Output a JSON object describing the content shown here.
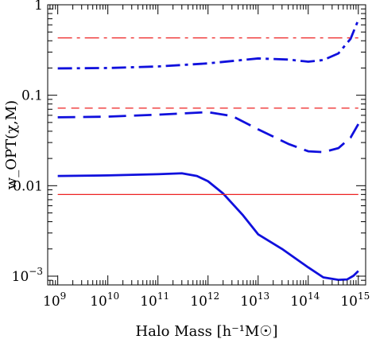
{
  "chart_data": {
    "type": "line",
    "xlabel": "Halo Mass [h⁻¹M☉]",
    "ylabel": "w_OPT(χ,M)",
    "xscale": "log",
    "yscale": "log",
    "xlim": [
      630000000.0,
      1400000000000000.0
    ],
    "ylim": [
      0.0008,
      1.0
    ],
    "x_ticks": [
      {
        "exp": "9"
      },
      {
        "exp": "10"
      },
      {
        "exp": "11"
      },
      {
        "exp": "12"
      },
      {
        "exp": "13"
      },
      {
        "exp": "14"
      },
      {
        "exp": "15"
      }
    ],
    "y_ticks": [
      {
        "value": 0.001,
        "label": "10",
        "exp": "−3"
      },
      {
        "value": 0.01,
        "label": "0.01",
        "exp": ""
      },
      {
        "value": 0.1,
        "label": "0.1",
        "exp": ""
      },
      {
        "value": 1,
        "label": "1",
        "exp": ""
      }
    ],
    "grid": false,
    "legend": "none",
    "series": [
      {
        "color": "#1010dd",
        "dash": "solid",
        "points": [
          [
            1000000000.0,
            0.0128
          ],
          [
            10000000000.0,
            0.013
          ],
          [
            100000000000.0,
            0.0134
          ],
          [
            300000000000.0,
            0.0137
          ],
          [
            600000000000.0,
            0.0128
          ],
          [
            1000000000000.0,
            0.0112
          ],
          [
            2000000000000.0,
            0.0082
          ],
          [
            5000000000000.0,
            0.0047
          ],
          [
            10000000000000.0,
            0.0029
          ],
          [
            30000000000000.0,
            0.002
          ],
          [
            100000000000000.0,
            0.00125
          ],
          [
            200000000000000.0,
            0.00097
          ],
          [
            400000000000000.0,
            0.00091
          ],
          [
            600000000000000.0,
            0.00092
          ],
          [
            800000000000000.0,
            0.00101
          ],
          [
            1000000000000000.0,
            0.00114
          ]
        ]
      },
      {
        "color": "#1010dd",
        "dash": "long-dash",
        "points": [
          [
            1000000000.0,
            0.057
          ],
          [
            10000000000.0,
            0.058
          ],
          [
            100000000000.0,
            0.061
          ],
          [
            1000000000000.0,
            0.065
          ],
          [
            3000000000000.0,
            0.059
          ],
          [
            10000000000000.0,
            0.042
          ],
          [
            40000000000000.0,
            0.029
          ],
          [
            100000000000000.0,
            0.024
          ],
          [
            200000000000000.0,
            0.0235
          ],
          [
            400000000000000.0,
            0.026
          ],
          [
            700000000000000.0,
            0.034
          ],
          [
            1000000000000000.0,
            0.048
          ]
        ]
      },
      {
        "color": "#1010dd",
        "dash": "dash-dot",
        "points": [
          [
            1000000000.0,
            0.198
          ],
          [
            10000000000.0,
            0.2
          ],
          [
            100000000000.0,
            0.208
          ],
          [
            1000000000000.0,
            0.225
          ],
          [
            10000000000000.0,
            0.255
          ],
          [
            40000000000000.0,
            0.248
          ],
          [
            100000000000000.0,
            0.235
          ],
          [
            200000000000000.0,
            0.245
          ],
          [
            400000000000000.0,
            0.29
          ],
          [
            700000000000000.0,
            0.42
          ],
          [
            1000000000000000.0,
            0.68
          ]
        ]
      },
      {
        "color": "#ee2222",
        "dash": "solid",
        "points": [
          [
            1000000000.0,
            0.008
          ],
          [
            1000000000000000.0,
            0.008
          ]
        ]
      },
      {
        "color": "#ee2222",
        "dash": "short-dash",
        "points": [
          [
            1000000000.0,
            0.072
          ],
          [
            1000000000000000.0,
            0.072
          ]
        ]
      },
      {
        "color": "#ee2222",
        "dash": "dash-dot",
        "points": [
          [
            1000000000.0,
            0.43
          ],
          [
            1000000000000000.0,
            0.43
          ]
        ]
      }
    ]
  }
}
